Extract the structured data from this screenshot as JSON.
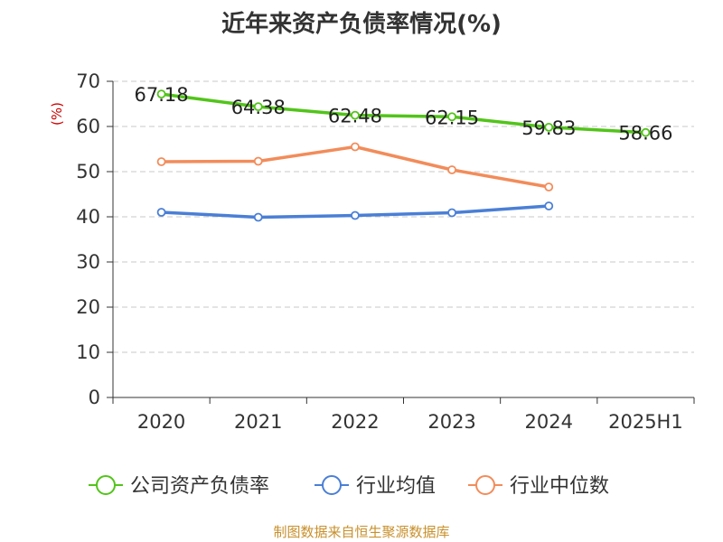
{
  "title": "近年来资产负债率情况(%)",
  "source": "制图数据来自恒生聚源数据库",
  "chart_data": {
    "type": "line",
    "title": "近年来资产负债率情况(%)",
    "ylabel": "(%)",
    "ylim": [
      0,
      70
    ],
    "yticks": [
      0,
      10,
      20,
      30,
      40,
      50,
      60,
      70
    ],
    "grid": true,
    "legend_position": "bottom",
    "categories": [
      "2020",
      "2021",
      "2022",
      "2023",
      "2024",
      "2025H1"
    ],
    "series": [
      {
        "name": "公司资产负债率",
        "color": "#52c41a",
        "values": [
          67.18,
          64.38,
          62.48,
          62.15,
          59.83,
          58.66
        ],
        "labels": [
          "67.18",
          "64.38",
          "62.48",
          "62.15",
          "59.83",
          "58.66"
        ]
      },
      {
        "name": "行业均值",
        "color": "#4a7fd6",
        "values": [
          41.0,
          39.9,
          40.3,
          40.9,
          42.4,
          null
        ]
      },
      {
        "name": "行业中位数",
        "color": "#f28c5a",
        "values": [
          52.2,
          52.3,
          55.5,
          50.4,
          46.6,
          null
        ]
      }
    ]
  }
}
